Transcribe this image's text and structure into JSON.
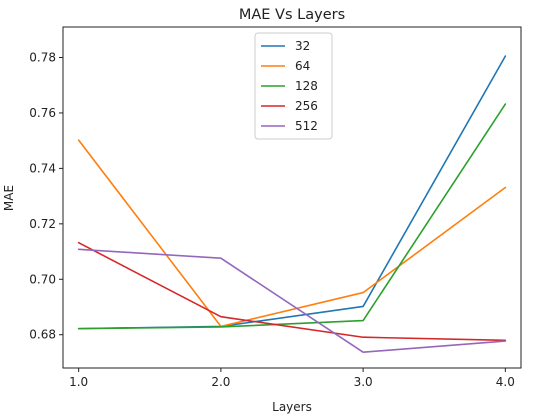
{
  "chart_data": {
    "type": "line",
    "title": "MAE Vs Layers",
    "xlabel": "Layers",
    "ylabel": "MAE",
    "x": [
      1.0,
      2.0,
      3.0,
      4.0
    ],
    "xticks": [
      "1.0",
      "2.0",
      "3.0",
      "4.0"
    ],
    "yticks": [
      "0.68",
      "0.70",
      "0.72",
      "0.74",
      "0.76",
      "0.78"
    ],
    "xlim": [
      0.89,
      4.11
    ],
    "ylim": [
      0.668,
      0.791
    ],
    "grid": false,
    "legend_position": "top-center",
    "series": [
      {
        "name": "32",
        "color": "#1f77b4",
        "values": [
          0.6822,
          0.683,
          0.6902,
          0.7805
        ]
      },
      {
        "name": "64",
        "color": "#ff7f0e",
        "values": [
          0.7502,
          0.683,
          0.6952,
          0.7331
        ]
      },
      {
        "name": "128",
        "color": "#2ca02c",
        "values": [
          0.6822,
          0.6828,
          0.6851,
          0.7632
        ]
      },
      {
        "name": "256",
        "color": "#d62728",
        "values": [
          0.7132,
          0.6865,
          0.6791,
          0.678
        ]
      },
      {
        "name": "512",
        "color": "#9467bd",
        "values": [
          0.7108,
          0.7076,
          0.6737,
          0.6777
        ]
      }
    ]
  }
}
